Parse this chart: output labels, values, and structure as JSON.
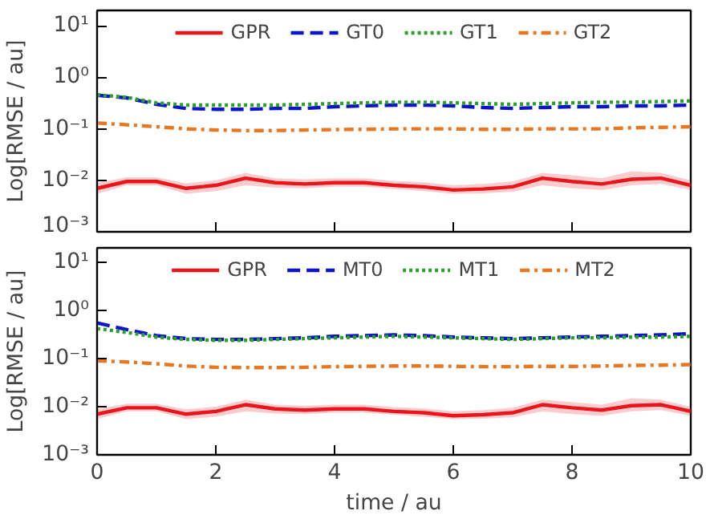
{
  "chart_data": [
    {
      "type": "line",
      "ylabel": "Log[RMSE / au]",
      "x": [
        0,
        0.5,
        1,
        1.5,
        2,
        2.5,
        3,
        3.5,
        4,
        4.5,
        5,
        5.5,
        6,
        6.5,
        7,
        7.5,
        8,
        8.5,
        9,
        9.5,
        10
      ],
      "xlim": [
        0,
        10
      ],
      "xticks": [
        0,
        2,
        4,
        6,
        8,
        10
      ],
      "ylim": [
        0.001,
        20
      ],
      "log": true,
      "yticks": [
        {
          "value": 0.001,
          "label": "10⁻³"
        },
        {
          "value": 0.01,
          "label": "10⁻²"
        },
        {
          "value": 0.1,
          "label": "10⁻¹"
        },
        {
          "value": 1,
          "label": "10⁰"
        },
        {
          "value": 10,
          "label": "10¹"
        }
      ],
      "tick_labels": "y",
      "grid": false,
      "legend": "top",
      "marker": "none",
      "series": [
        {
          "name": "GPR",
          "color": "#e8161b",
          "line_style": "solid",
          "values": [
            0.007,
            0.0095,
            0.0095,
            0.007,
            0.008,
            0.011,
            0.009,
            0.0085,
            0.009,
            0.009,
            0.008,
            0.0075,
            0.0065,
            0.0068,
            0.0075,
            0.011,
            0.0095,
            0.0085,
            0.0105,
            0.011,
            0.008
          ],
          "lower": [
            0.0055,
            0.008,
            0.008,
            0.0055,
            0.0062,
            0.008,
            0.0072,
            0.007,
            0.0075,
            0.0075,
            0.0068,
            0.0062,
            0.0055,
            0.0056,
            0.006,
            0.008,
            0.007,
            0.0065,
            0.008,
            0.0085,
            0.0065
          ],
          "upper": [
            0.009,
            0.0115,
            0.0115,
            0.0088,
            0.01,
            0.014,
            0.011,
            0.0105,
            0.011,
            0.011,
            0.0098,
            0.0092,
            0.008,
            0.0085,
            0.0095,
            0.014,
            0.0125,
            0.011,
            0.015,
            0.014,
            0.01
          ]
        },
        {
          "name": "GT0",
          "color": "#0a14c8",
          "line_style": "dashed",
          "values": [
            0.45,
            0.4,
            0.3,
            0.25,
            0.24,
            0.24,
            0.25,
            0.25,
            0.27,
            0.28,
            0.29,
            0.29,
            0.28,
            0.26,
            0.25,
            0.26,
            0.27,
            0.27,
            0.28,
            0.28,
            0.29
          ]
        },
        {
          "name": "GT1",
          "color": "#2ca02c",
          "line_style": "dotted",
          "values": [
            0.46,
            0.41,
            0.32,
            0.29,
            0.29,
            0.29,
            0.29,
            0.3,
            0.31,
            0.32,
            0.33,
            0.33,
            0.32,
            0.31,
            0.3,
            0.31,
            0.32,
            0.33,
            0.33,
            0.34,
            0.35
          ]
        },
        {
          "name": "GT2",
          "color": "#e87722",
          "line_style": "dashdot",
          "values": [
            0.13,
            0.12,
            0.11,
            0.1,
            0.095,
            0.093,
            0.093,
            0.095,
            0.097,
            0.098,
            0.1,
            0.1,
            0.1,
            0.098,
            0.098,
            0.1,
            0.1,
            0.1,
            0.105,
            0.107,
            0.11
          ]
        }
      ]
    },
    {
      "type": "line",
      "xlabel": "time / au",
      "ylabel": "Log[RMSE / au]",
      "x": [
        0,
        0.5,
        1,
        1.5,
        2,
        2.5,
        3,
        3.5,
        4,
        4.5,
        5,
        5.5,
        6,
        6.5,
        7,
        7.5,
        8,
        8.5,
        9,
        9.5,
        10
      ],
      "xlim": [
        0,
        10
      ],
      "xticks": [
        0,
        2,
        4,
        6,
        8,
        10
      ],
      "ylim": [
        0.001,
        20
      ],
      "log": true,
      "yticks": [
        {
          "value": 0.001,
          "label": "10⁻³"
        },
        {
          "value": 0.01,
          "label": "10⁻²"
        },
        {
          "value": 0.1,
          "label": "10⁻¹"
        },
        {
          "value": 1,
          "label": "10⁰"
        },
        {
          "value": 10,
          "label": "10¹"
        }
      ],
      "grid": false,
      "legend": "top",
      "marker": "none",
      "series": [
        {
          "name": "GPR",
          "color": "#e8161b",
          "line_style": "solid",
          "values": [
            0.007,
            0.0095,
            0.0095,
            0.007,
            0.008,
            0.011,
            0.009,
            0.0085,
            0.009,
            0.009,
            0.008,
            0.0075,
            0.0065,
            0.0068,
            0.0075,
            0.011,
            0.0095,
            0.0085,
            0.0105,
            0.011,
            0.008
          ],
          "lower": [
            0.0055,
            0.008,
            0.008,
            0.0055,
            0.0062,
            0.008,
            0.0072,
            0.007,
            0.0075,
            0.0075,
            0.0068,
            0.0062,
            0.0055,
            0.0056,
            0.006,
            0.008,
            0.007,
            0.0065,
            0.008,
            0.0085,
            0.0065
          ],
          "upper": [
            0.009,
            0.0115,
            0.0115,
            0.0088,
            0.01,
            0.014,
            0.011,
            0.0105,
            0.011,
            0.011,
            0.0098,
            0.0092,
            0.008,
            0.0085,
            0.0095,
            0.014,
            0.0125,
            0.011,
            0.015,
            0.014,
            0.01
          ]
        },
        {
          "name": "MT0",
          "color": "#0a14c8",
          "line_style": "dashed",
          "values": [
            0.55,
            0.4,
            0.3,
            0.26,
            0.25,
            0.25,
            0.26,
            0.27,
            0.29,
            0.3,
            0.31,
            0.3,
            0.28,
            0.27,
            0.26,
            0.27,
            0.28,
            0.29,
            0.3,
            0.31,
            0.33
          ]
        },
        {
          "name": "MT1",
          "color": "#2ca02c",
          "line_style": "dotted",
          "values": [
            0.42,
            0.35,
            0.28,
            0.25,
            0.24,
            0.24,
            0.25,
            0.26,
            0.27,
            0.28,
            0.29,
            0.28,
            0.27,
            0.26,
            0.25,
            0.26,
            0.27,
            0.27,
            0.28,
            0.28,
            0.29
          ]
        },
        {
          "name": "MT2",
          "color": "#e87722",
          "line_style": "dashdot",
          "values": [
            0.09,
            0.085,
            0.078,
            0.07,
            0.066,
            0.065,
            0.065,
            0.066,
            0.068,
            0.069,
            0.07,
            0.07,
            0.069,
            0.068,
            0.068,
            0.069,
            0.069,
            0.07,
            0.072,
            0.073,
            0.075
          ]
        }
      ]
    }
  ]
}
